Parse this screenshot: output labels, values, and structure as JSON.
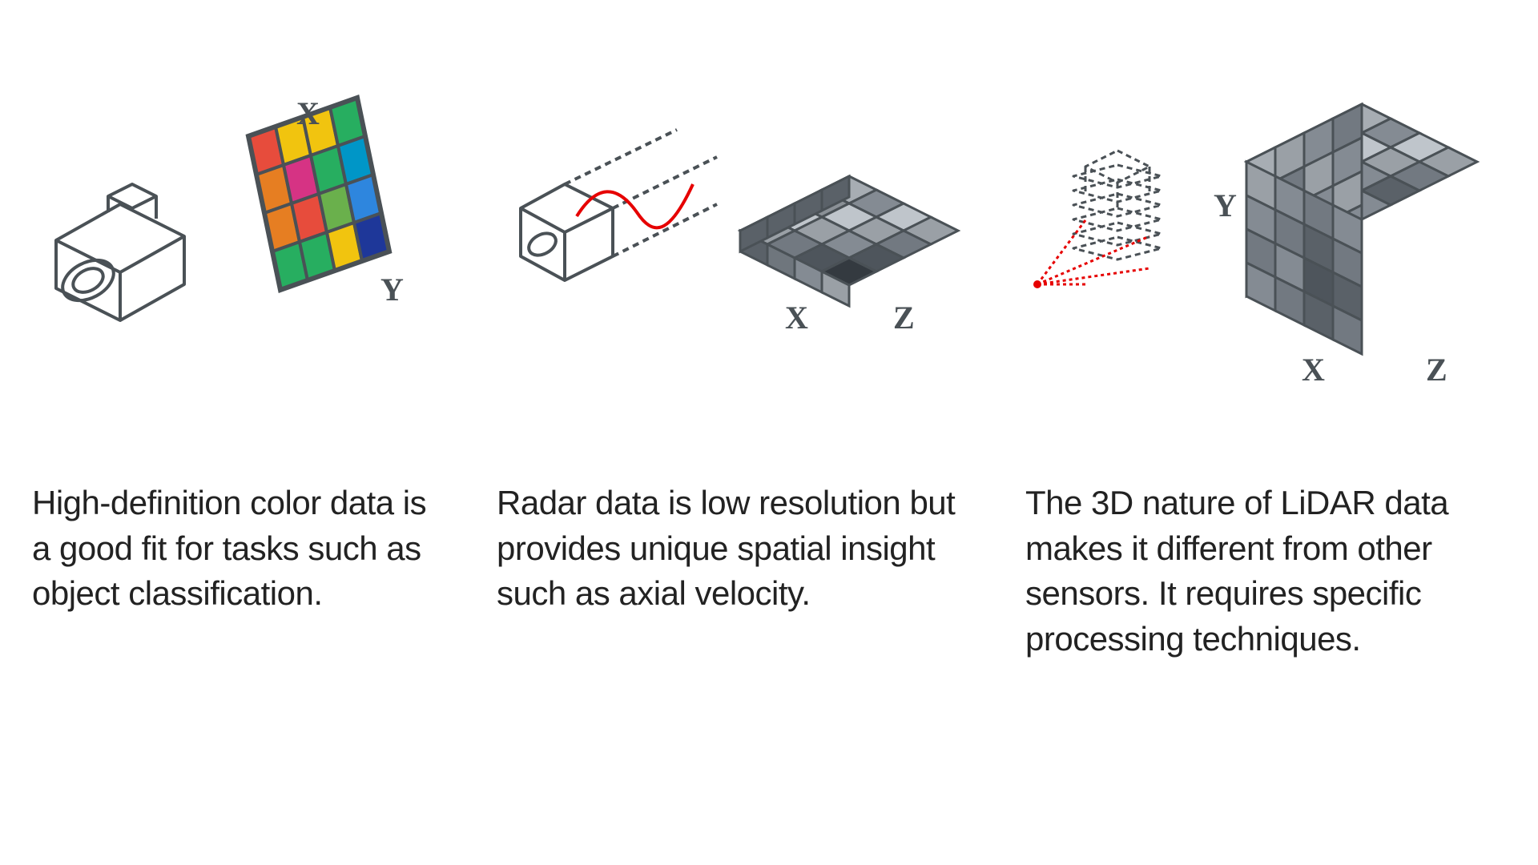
{
  "type": "infographic",
  "background_color": "#ffffff",
  "text_color": "#222222",
  "caption_fontsize": 42,
  "axis_label_fontsize": 36,
  "axis_label_color": "#4a5156",
  "line_color": "#4a5156",
  "panels": [
    {
      "id": "camera",
      "caption": "High-definition color data is a good fit for tasks such as object classification.",
      "axes": {
        "x": "X",
        "y": "Y"
      },
      "icon": "camera",
      "grid_colors": [
        [
          "#e74c3c",
          "#f1c40f",
          "#f1c40f",
          "#27ae60"
        ],
        [
          "#e67e22",
          "#d63384",
          "#27ae60",
          "#0096c7"
        ],
        [
          "#e67e22",
          "#e74c3c",
          "#6ab04c",
          "#2e86de"
        ],
        [
          "#27ae60",
          "#27ae60",
          "#f1c40f",
          "#1e3799"
        ]
      ],
      "grid_border": "#4a5156"
    },
    {
      "id": "radar",
      "caption": "Radar data is low resolution but provides unique spatial insight such as axial velocity.",
      "axes": {
        "x": "X",
        "z": "Z"
      },
      "icon": "radar-box",
      "wave_color": "#e60000",
      "slab_grays": [
        [
          "#a7adb3",
          "#848b93",
          "#bfc5cb",
          "#9aa0a6"
        ],
        [
          "#8a9096",
          "#bfc5cb",
          "#9aa0a6",
          "#727981"
        ],
        [
          "#bfc5cb",
          "#9aa0a6",
          "#848b93",
          "#4e555c"
        ],
        [
          "#9aa0a6",
          "#727981",
          "#4e555c",
          "#343a40"
        ]
      ],
      "slab_side_shades": [
        "#5a6168",
        "#6f767d",
        "#848b93",
        "#9aa0a6"
      ],
      "slab_border": "#4a5156"
    },
    {
      "id": "lidar",
      "caption": "The 3D nature of LiDAR data makes it different from other sensors. It requires specific processing techniques.",
      "axes": {
        "x": "X",
        "y": "Y",
        "z": "Z"
      },
      "icon": "lidar-scan",
      "scan_color": "#e60000",
      "cube_grays": {
        "top": [
          [
            "#a7adb3",
            "#848b93",
            "#bfc5cb",
            "#9aa0a6"
          ],
          [
            "#8a9096",
            "#bfc5cb",
            "#9aa0a6",
            "#727981"
          ],
          [
            "#bfc5cb",
            "#9aa0a6",
            "#848b93",
            "#5a6168"
          ],
          [
            "#9aa0a6",
            "#727981",
            "#5a6168",
            "#848b93"
          ]
        ],
        "left": [
          [
            "#727981",
            "#848b93",
            "#9aa0a6",
            "#a7adb3"
          ],
          [
            "#848b93",
            "#9aa0a6",
            "#727981",
            "#848b93"
          ],
          [
            "#9aa0a6",
            "#848b93",
            "#5a6168",
            "#727981"
          ],
          [
            "#848b93",
            "#727981",
            "#848b93",
            "#9aa0a6"
          ]
        ],
        "right": [
          [
            "#9aa0a6",
            "#848b93",
            "#727981",
            "#848b93"
          ],
          [
            "#848b93",
            "#727981",
            "#5a6168",
            "#727981"
          ],
          [
            "#727981",
            "#848b93",
            "#4e555c",
            "#5a6168"
          ],
          [
            "#848b93",
            "#727981",
            "#5a6168",
            "#727981"
          ]
        ]
      },
      "cube_border": "#4a5156"
    }
  ]
}
